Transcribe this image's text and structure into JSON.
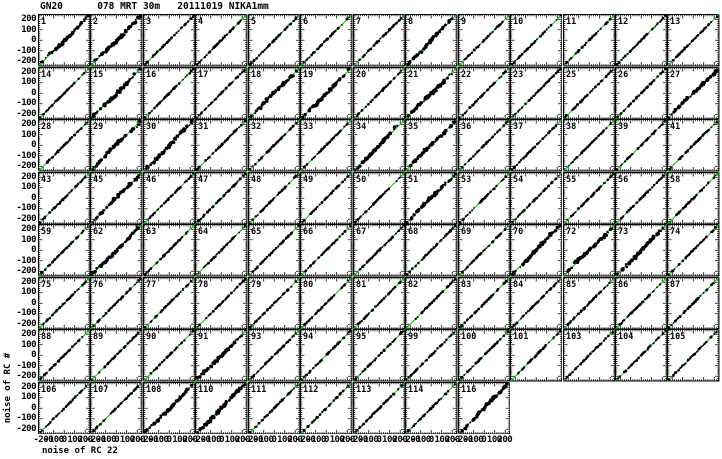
{
  "figure": {
    "title": "GN20      078 MRT 30m   20111019 NIKA1mm",
    "xlabel": "noise of RC 22",
    "ylabel": "noise of RC #",
    "colors": {
      "ink": "#000000",
      "line": "#00c400",
      "background": "#ffffff"
    }
  },
  "chart_data": {
    "type": "scatter",
    "title": "GN20 078 MRT 30m 20111019 NIKA1mm",
    "xlabel": "noise of RC 22",
    "ylabel": "noise of RC #",
    "xlim": [
      -250,
      250
    ],
    "ylim": [
      -250,
      250
    ],
    "x_ticks": [
      -200,
      -100,
      0,
      100,
      200
    ],
    "y_ticks": [
      200,
      100,
      0,
      -100,
      -200
    ],
    "grid": {
      "cols": 13,
      "rows": 8,
      "last_row_cols": 9
    },
    "legend": "none",
    "description": "Per-channel noise of receiver channel # (y) vs noise of reference channel 22 (x); black scatter points tightly correlated along a green y=x line in every panel.",
    "panels": [
      1,
      2,
      3,
      4,
      5,
      6,
      7,
      8,
      9,
      10,
      11,
      12,
      13,
      14,
      15,
      16,
      17,
      18,
      19,
      20,
      21,
      22,
      23,
      25,
      26,
      27,
      28,
      29,
      30,
      31,
      32,
      33,
      34,
      35,
      36,
      37,
      38,
      39,
      41,
      43,
      45,
      46,
      47,
      48,
      49,
      50,
      51,
      53,
      54,
      55,
      56,
      58,
      59,
      62,
      63,
      64,
      65,
      66,
      67,
      68,
      69,
      70,
      72,
      73,
      74,
      75,
      76,
      77,
      78,
      79,
      80,
      81,
      82,
      83,
      84,
      85,
      86,
      87,
      88,
      89,
      90,
      91,
      93,
      94,
      95,
      99,
      100,
      101,
      103,
      104,
      105,
      106,
      107,
      108,
      110,
      111,
      112,
      113,
      114,
      116
    ],
    "dense_panels": [
      1,
      2,
      8,
      15,
      18,
      19,
      21,
      27,
      29,
      30,
      34,
      35,
      45,
      51,
      62,
      70,
      72,
      73,
      91,
      108,
      110,
      116
    ]
  }
}
